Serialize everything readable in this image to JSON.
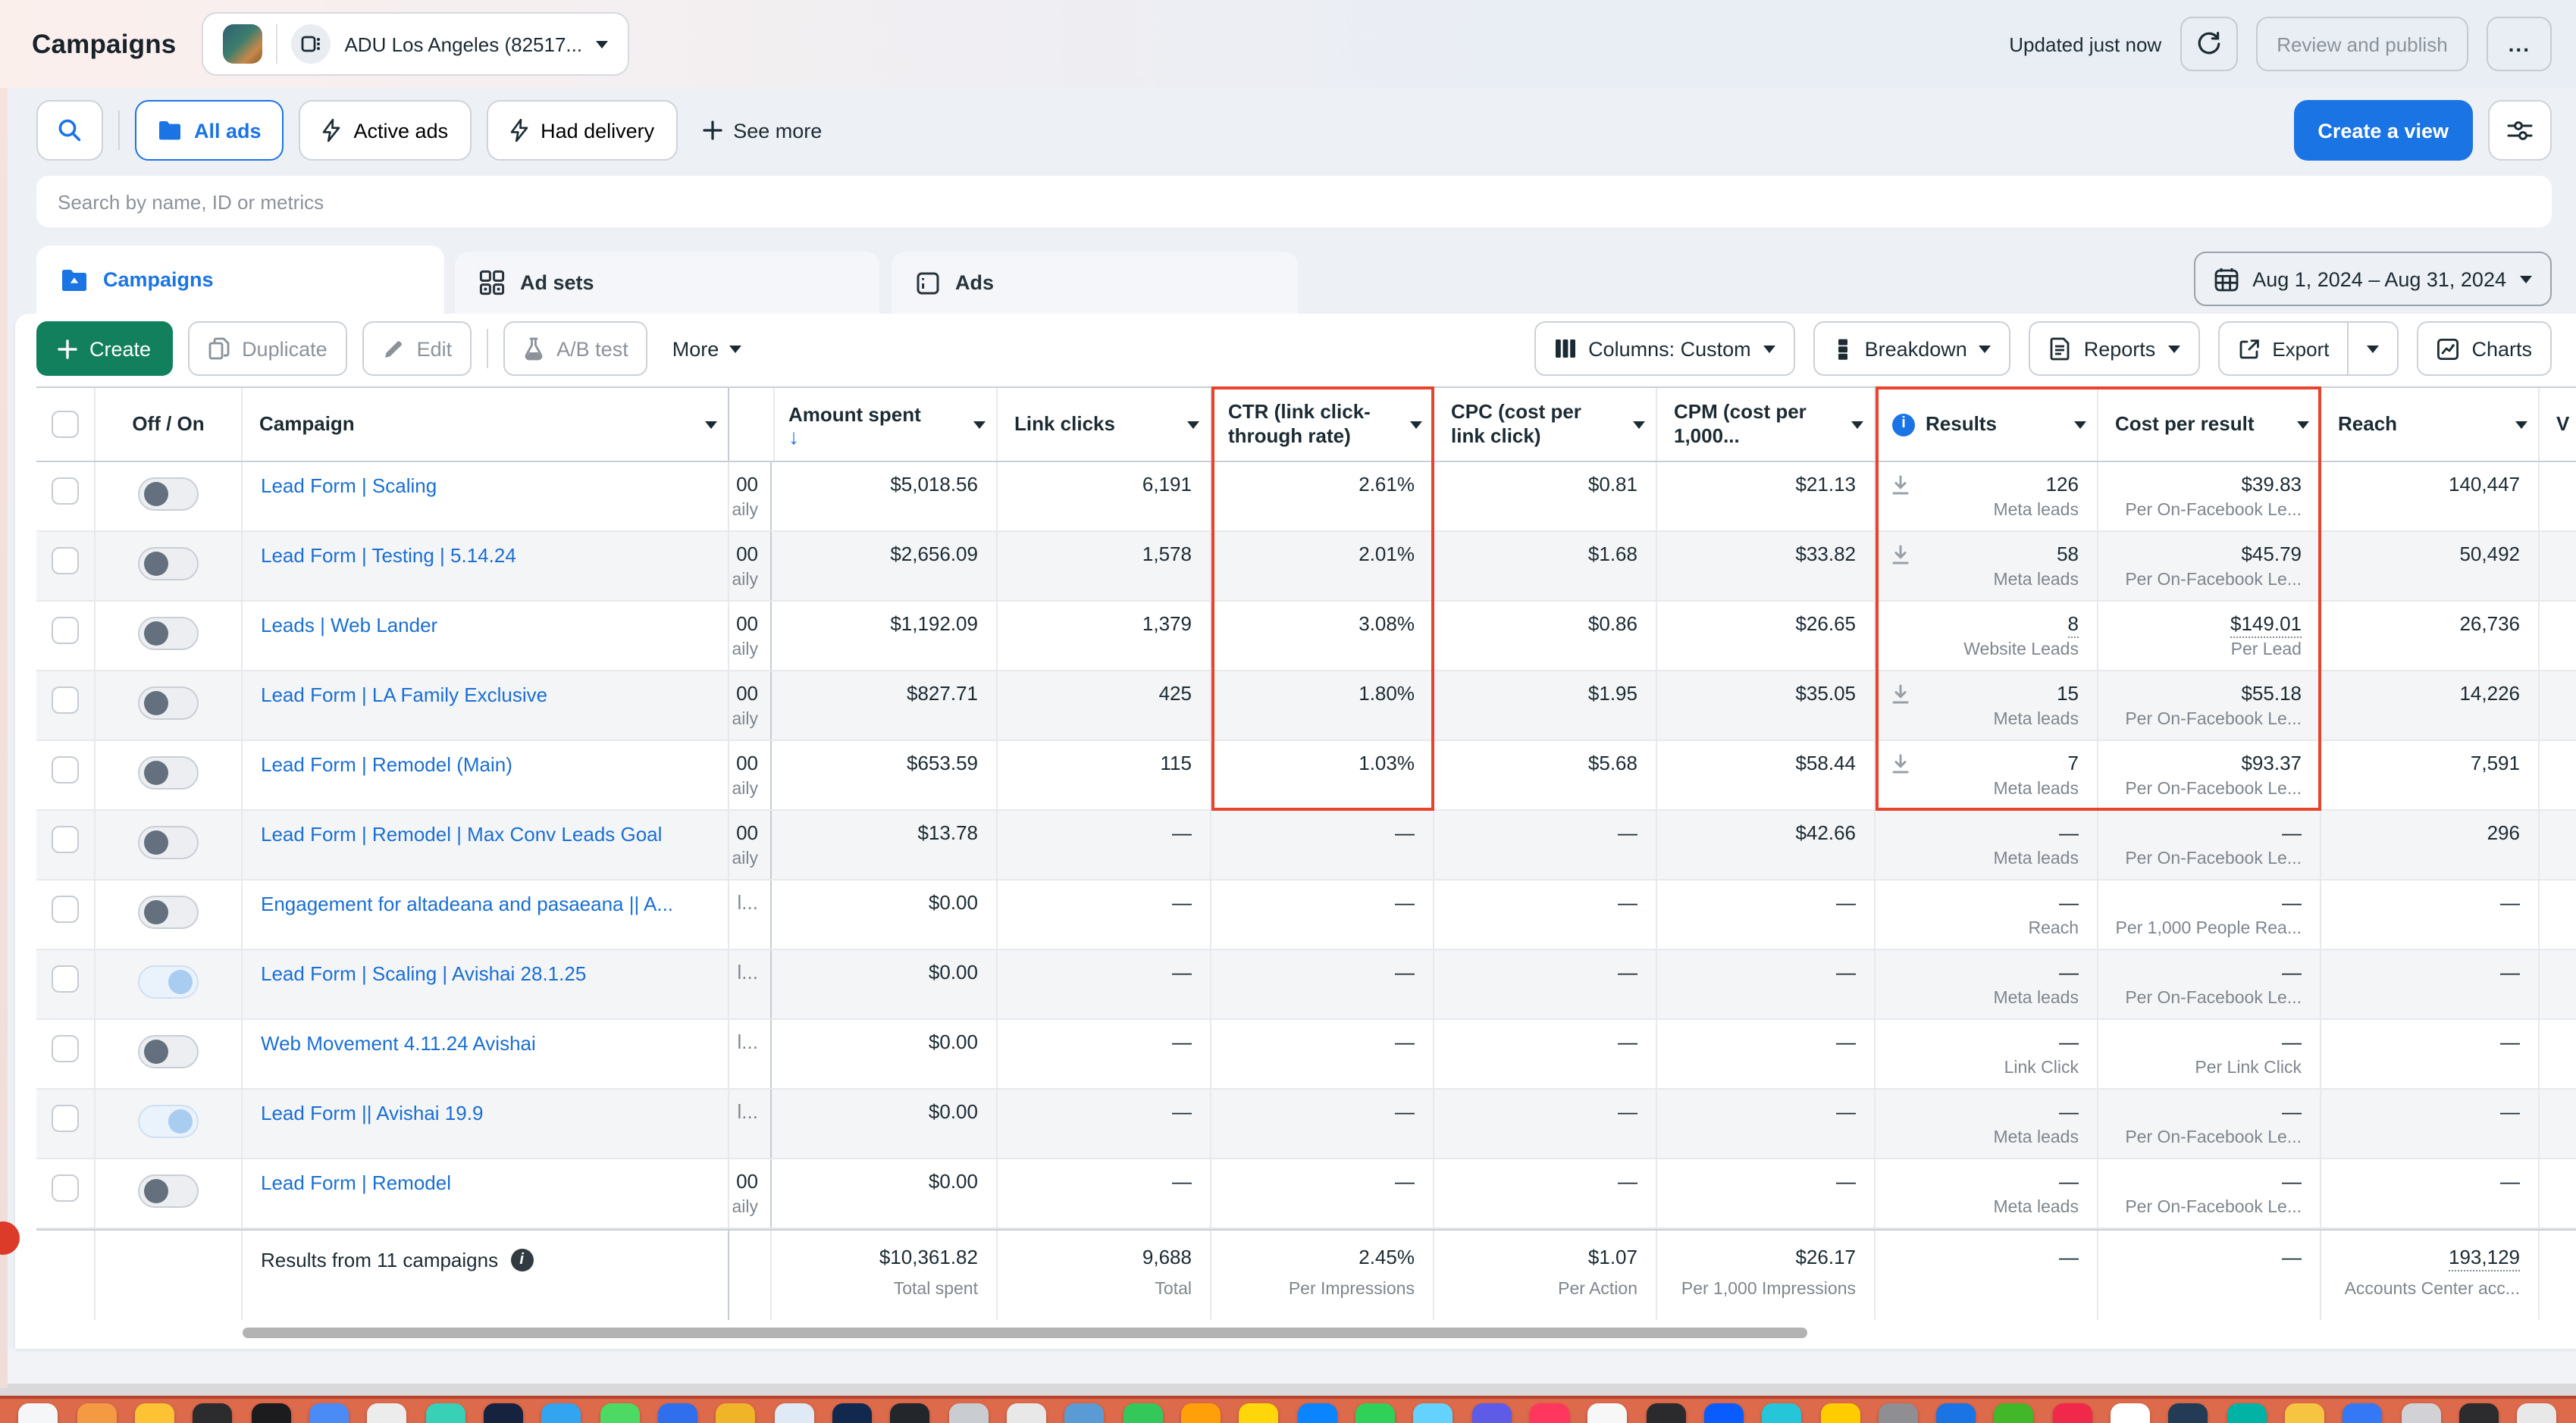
{
  "header": {
    "title": "Campaigns",
    "account_name": "ADU Los Angeles (82517...",
    "updated": "Updated just now",
    "review_label": "Review and publish",
    "ellipsis": "..."
  },
  "filters": {
    "all_ads": "All ads",
    "active_ads": "Active ads",
    "had_delivery": "Had delivery",
    "see_more": "See more",
    "create_view": "Create a view"
  },
  "search": {
    "placeholder": "Search by name, ID or metrics"
  },
  "tabs": {
    "campaigns": "Campaigns",
    "ad_sets": "Ad sets",
    "ads": "Ads"
  },
  "date_range": {
    "label": "Aug 1, 2024 – Aug 31, 2024"
  },
  "toolbar": {
    "create": "Create",
    "duplicate": "Duplicate",
    "edit": "Edit",
    "ab_test": "A/B test",
    "more": "More",
    "columns": "Columns: Custom",
    "breakdown": "Breakdown",
    "reports": "Reports",
    "export": "Export",
    "charts": "Charts"
  },
  "colors": {
    "accent_blue": "#1b74e4",
    "create_green": "#12805c",
    "annotation_red": "#e8432c"
  },
  "table": {
    "header": {
      "off_on": "Off / On",
      "campaign": "Campaign",
      "amount_spent": "Amount spent",
      "link_clicks": "Link clicks",
      "ctr1": "CTR (link click-",
      "ctr2": "through rate)",
      "cpc1": "CPC (cost per",
      "cpc2": "link click)",
      "cpm1": "CPM (cost per",
      "cpm2": "1,000...",
      "results": "Results",
      "cost_per_result": "Cost per result",
      "reach": "Reach",
      "video": "V"
    },
    "rows": [
      {
        "name": "Lead Form | Scaling",
        "budget_top": "00",
        "budget_sub": "aily",
        "budget_muted": false,
        "spent": "$5,018.56",
        "clicks": "6,191",
        "ctr": "2.61%",
        "cpc": "$0.81",
        "cpm": "$21.13",
        "results": "126",
        "results_sub": "Meta leads",
        "results_icon": true,
        "results_underline": false,
        "cost": "$39.83",
        "cost_sub": "Per On-Facebook Le...",
        "cost_underline": false,
        "reach": "140,447",
        "toggle": "off"
      },
      {
        "name": "Lead Form | Testing | 5.14.24",
        "budget_top": "00",
        "budget_sub": "aily",
        "budget_muted": false,
        "spent": "$2,656.09",
        "clicks": "1,578",
        "ctr": "2.01%",
        "cpc": "$1.68",
        "cpm": "$33.82",
        "results": "58",
        "results_sub": "Meta leads",
        "results_icon": true,
        "results_underline": false,
        "cost": "$45.79",
        "cost_sub": "Per On-Facebook Le...",
        "cost_underline": false,
        "reach": "50,492",
        "toggle": "off"
      },
      {
        "name": "Leads | Web Lander",
        "budget_top": "00",
        "budget_sub": "aily",
        "budget_muted": false,
        "spent": "$1,192.09",
        "clicks": "1,379",
        "ctr": "3.08%",
        "cpc": "$0.86",
        "cpm": "$26.65",
        "results": "8",
        "results_sub": "Website Leads",
        "results_icon": false,
        "results_underline": true,
        "cost": "$149.01",
        "cost_sub": "Per Lead",
        "cost_underline": true,
        "reach": "26,736",
        "toggle": "off"
      },
      {
        "name": "Lead Form | LA Family Exclusive",
        "budget_top": "00",
        "budget_sub": "aily",
        "budget_muted": false,
        "spent": "$827.71",
        "clicks": "425",
        "ctr": "1.80%",
        "cpc": "$1.95",
        "cpm": "$35.05",
        "results": "15",
        "results_sub": "Meta leads",
        "results_icon": true,
        "results_underline": false,
        "cost": "$55.18",
        "cost_sub": "Per On-Facebook Le...",
        "cost_underline": false,
        "reach": "14,226",
        "toggle": "off"
      },
      {
        "name": "Lead Form | Remodel (Main)",
        "budget_top": "00",
        "budget_sub": "aily",
        "budget_muted": false,
        "spent": "$653.59",
        "clicks": "115",
        "ctr": "1.03%",
        "cpc": "$5.68",
        "cpm": "$58.44",
        "results": "7",
        "results_sub": "Meta leads",
        "results_icon": true,
        "results_underline": false,
        "cost": "$93.37",
        "cost_sub": "Per On-Facebook Le...",
        "cost_underline": false,
        "reach": "7,591",
        "toggle": "off"
      },
      {
        "name": "Lead Form | Remodel | Max Conv Leads Goal",
        "budget_top": "00",
        "budget_sub": "aily",
        "budget_muted": false,
        "spent": "$13.78",
        "clicks": "—",
        "ctr": "—",
        "cpc": "—",
        "cpm": "$42.66",
        "results": "—",
        "results_sub": "Meta leads",
        "results_icon": false,
        "results_underline": false,
        "cost": "—",
        "cost_sub": "Per On-Facebook Le...",
        "cost_underline": false,
        "reach": "296",
        "toggle": "off"
      },
      {
        "name": "Engagement for altadeana and pasaeana || A...",
        "budget_top": "l...",
        "budget_sub": "",
        "budget_muted": true,
        "spent": "$0.00",
        "clicks": "—",
        "ctr": "—",
        "cpc": "—",
        "cpm": "—",
        "results": "—",
        "results_sub": "Reach",
        "results_icon": false,
        "results_underline": false,
        "cost": "—",
        "cost_sub": "Per 1,000 People Rea...",
        "cost_underline": false,
        "reach": "—",
        "toggle": "off"
      },
      {
        "name": "Lead Form | Scaling | Avishai 28.1.25",
        "budget_top": "l...",
        "budget_sub": "",
        "budget_muted": true,
        "spent": "$0.00",
        "clicks": "—",
        "ctr": "—",
        "cpc": "—",
        "cpm": "—",
        "results": "—",
        "results_sub": "Meta leads",
        "results_icon": false,
        "results_underline": false,
        "cost": "—",
        "cost_sub": "Per On-Facebook Le...",
        "cost_underline": false,
        "reach": "—",
        "toggle": "on"
      },
      {
        "name": "Web Movement 4.11.24 Avishai",
        "budget_top": "l...",
        "budget_sub": "",
        "budget_muted": true,
        "spent": "$0.00",
        "clicks": "—",
        "ctr": "—",
        "cpc": "—",
        "cpm": "—",
        "results": "—",
        "results_sub": "Link Click",
        "results_icon": false,
        "results_underline": false,
        "cost": "—",
        "cost_sub": "Per Link Click",
        "cost_underline": false,
        "reach": "—",
        "toggle": "off"
      },
      {
        "name": "Lead Form || Avishai 19.9",
        "budget_top": "l...",
        "budget_sub": "",
        "budget_muted": true,
        "spent": "$0.00",
        "clicks": "—",
        "ctr": "—",
        "cpc": "—",
        "cpm": "—",
        "results": "—",
        "results_sub": "Meta leads",
        "results_icon": false,
        "results_underline": false,
        "cost": "—",
        "cost_sub": "Per On-Facebook Le...",
        "cost_underline": false,
        "reach": "—",
        "toggle": "on"
      },
      {
        "name": "Lead Form | Remodel",
        "budget_top": "00",
        "budget_sub": "aily",
        "budget_muted": false,
        "spent": "$0.00",
        "clicks": "—",
        "ctr": "—",
        "cpc": "—",
        "cpm": "—",
        "results": "—",
        "results_sub": "Meta leads",
        "results_icon": false,
        "results_underline": false,
        "cost": "—",
        "cost_sub": "Per On-Facebook Le...",
        "cost_underline": false,
        "reach": "—",
        "toggle": "off"
      }
    ],
    "footer": {
      "label": "Results from 11 campaigns",
      "spent": "$10,361.82",
      "spent_sub": "Total spent",
      "clicks": "9,688",
      "clicks_sub": "Total",
      "ctr": "2.45%",
      "ctr_sub": "Per Impressions",
      "cpc": "$1.07",
      "cpc_sub": "Per Action",
      "cpm": "$26.17",
      "cpm_sub": "Per 1,000 Impressions",
      "results": "—",
      "cost": "—",
      "reach": "193,129",
      "reach_sub": "Accounts Center acc..."
    }
  },
  "dock": {
    "icon_colors": [
      "#f5f6f7",
      "#f49a42",
      "#fdc335",
      "#2c2c2e",
      "#1c1c1e",
      "#4b8bf5",
      "#ececec",
      "#39d0b8",
      "#16233f",
      "#33a4f0",
      "#4cd964",
      "#2f6fed",
      "#f0b429",
      "#dfeaf6",
      "#12294f",
      "#23262b",
      "#c9cdd2",
      "#e8e8e8",
      "#5a9bd5",
      "#34c759",
      "#ff9f0a",
      "#ffd60a",
      "#0a84ff",
      "#30d158",
      "#64d2ff",
      "#5e5ce6",
      "#ff375f",
      "#f7f7f7",
      "#2b2b2d",
      "#0b5cff",
      "#26c6da",
      "#ffcc00",
      "#8e8e93",
      "#1b74e4",
      "#42b72a",
      "#f02849",
      "#ffffff",
      "#243b55",
      "#00b3a4",
      "#f5c542",
      "#3478f6",
      "#d1d1d6",
      "#2c2c2e",
      "#e8e8e8"
    ]
  }
}
